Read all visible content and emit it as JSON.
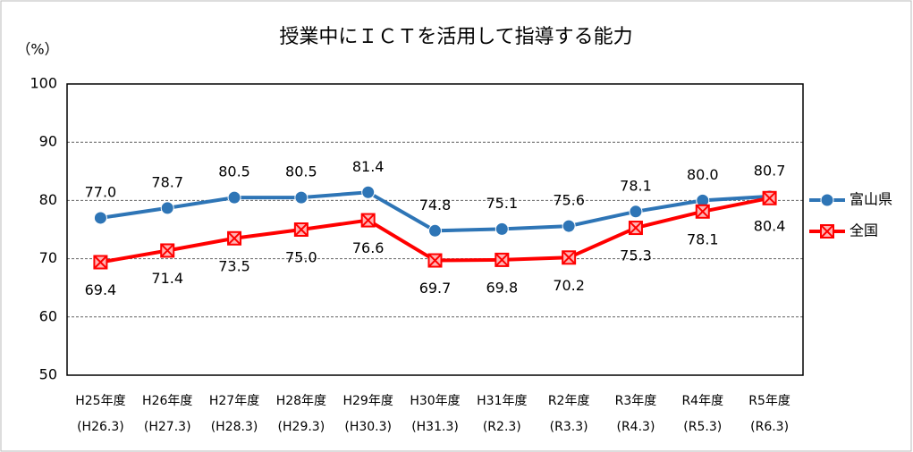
{
  "chart_data": {
    "type": "line",
    "title": "授業中にＩＣＴを活用して指導する能力",
    "y_label": "（%）",
    "categories": [
      [
        "H25年度",
        "(H26.3)"
      ],
      [
        "H26年度",
        "(H27.3)"
      ],
      [
        "H27年度",
        "(H28.3)"
      ],
      [
        "H28年度",
        "(H29.3)"
      ],
      [
        "H29年度",
        "(H30.3)"
      ],
      [
        "H30年度",
        "(H31.3)"
      ],
      [
        "H31年度",
        "(R2.3)"
      ],
      [
        "R2年度",
        "(R3.3)"
      ],
      [
        "R3年度",
        "(R4.3)"
      ],
      [
        "R4年度",
        "(R5.3)"
      ],
      [
        "R5年度",
        "(R6.3)"
      ]
    ],
    "series": [
      {
        "name": "富山県",
        "color": "#2e75b6",
        "marker": "circle",
        "values": [
          77.0,
          78.7,
          80.5,
          80.5,
          81.4,
          74.8,
          75.1,
          75.6,
          78.1,
          80.0,
          80.7
        ],
        "value_labels": [
          "77.0",
          "78.7",
          "80.5",
          "80.5",
          "81.4",
          "74.8",
          "75.1",
          "75.6",
          "78.1",
          "80.0",
          "80.7"
        ]
      },
      {
        "name": "全国",
        "color": "#ff0000",
        "marker": "square-x",
        "values": [
          69.4,
          71.4,
          73.5,
          75.0,
          76.6,
          69.7,
          69.8,
          70.2,
          75.3,
          78.1,
          80.4
        ],
        "value_labels": [
          "69.4",
          "71.4",
          "73.5",
          "75.0",
          "76.6",
          "69.7",
          "69.8",
          "70.2",
          "75.3",
          "78.1",
          "80.4"
        ]
      }
    ],
    "ylim": [
      50,
      100
    ],
    "yticks": [
      50,
      60,
      70,
      80,
      90,
      100
    ],
    "grid": true,
    "legend": "right"
  }
}
